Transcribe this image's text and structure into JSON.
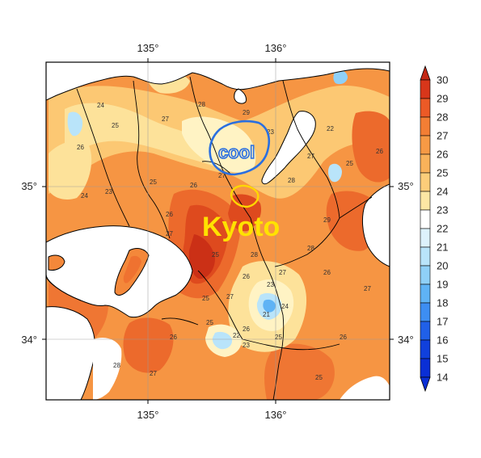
{
  "map": {
    "lon_ticks": [
      "135°",
      "136°"
    ],
    "lat_ticks": [
      "35°",
      "34°"
    ],
    "annotations": {
      "city_label": "Kyoto",
      "cool_label": "cool"
    },
    "contour_labels": [
      "24",
      "25",
      "26",
      "27",
      "28",
      "29",
      "23",
      "22",
      "25",
      "26",
      "27",
      "28",
      "27",
      "26",
      "25",
      "24",
      "23",
      "26",
      "27",
      "25",
      "28",
      "26",
      "27",
      "28",
      "29",
      "26",
      "25",
      "27",
      "24",
      "25",
      "23",
      "26",
      "22",
      "25",
      "21",
      "23",
      "26",
      "27",
      "28",
      "25",
      "26",
      "27"
    ],
    "colors": {
      "c14": "#0a2fd6",
      "c15": "#2060e8",
      "c16": "#3d8ef2",
      "c17": "#5fb3f5",
      "c18": "#8fd0f7",
      "c19": "#b9e4fa",
      "c20": "#dff3fc",
      "c21": "#ffffff",
      "c22": "#fff3c4",
      "c23": "#fde29a",
      "c24": "#fcc873",
      "c25": "#f9a54e",
      "c26": "#f4883a",
      "c27": "#ec6a2c",
      "c28": "#de4a1e",
      "c29": "#c42814",
      "water": "#ffffff"
    }
  },
  "colorbar": {
    "labels": [
      "30",
      "29",
      "28",
      "27",
      "26",
      "25",
      "24",
      "23",
      "22",
      "21",
      "20",
      "19",
      "18",
      "17",
      "16",
      "15",
      "14"
    ],
    "levels": [
      30,
      29,
      28,
      27,
      26,
      25,
      24,
      23,
      22,
      21,
      20,
      19,
      18,
      17,
      16,
      15,
      14
    ],
    "colors": [
      "#d8361a",
      "#ec5a26",
      "#f37e34",
      "#f79a45",
      "#f9b25a",
      "#fccd7a",
      "#fde7a4",
      "#ffffff",
      "#ddf2fc",
      "#b9e4fa",
      "#8fd0f7",
      "#5fb3f5",
      "#3d8ef2",
      "#2060e8",
      "#1040dc",
      "#0a2fd6"
    ],
    "top_arrow_color": "#c42814",
    "bottom_arrow_color": "#0a2fd6"
  }
}
